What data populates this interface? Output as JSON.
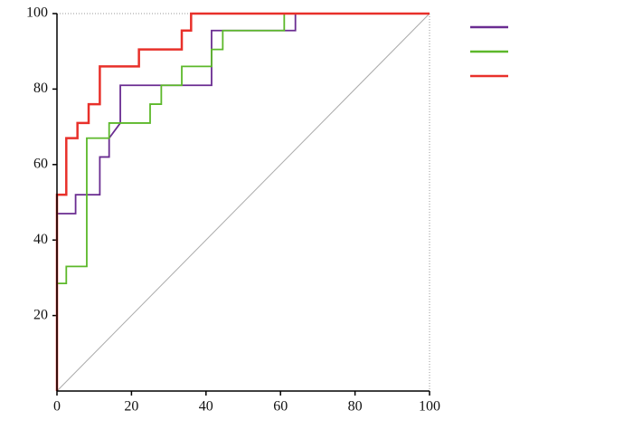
{
  "chart_data": {
    "type": "line",
    "step": true,
    "xlim": [
      0,
      100
    ],
    "ylim": [
      0,
      100
    ],
    "xticks": [
      0,
      20,
      40,
      60,
      80,
      100
    ],
    "yticks": [
      20,
      40,
      60,
      80,
      100
    ],
    "reference_line": true,
    "legend": "right",
    "series": [
      {
        "color": "#6a2c91",
        "x": [
          0,
          0,
          5,
          5,
          11.5,
          11.5,
          14,
          14,
          17,
          17,
          41.5,
          41.5,
          64,
          64,
          100
        ],
        "values": [
          0,
          47,
          47,
          52,
          52,
          62,
          62,
          67,
          71,
          81,
          81,
          95.5,
          95.5,
          100,
          100
        ]
      },
      {
        "color": "#5cb82a",
        "x": [
          0,
          0,
          2.5,
          2.5,
          8,
          8,
          14,
          14,
          25,
          25,
          28,
          28,
          33.5,
          33.5,
          41.5,
          41.5,
          44.5,
          44.5,
          61,
          61,
          100
        ],
        "values": [
          0,
          28.5,
          28.5,
          33,
          33,
          67,
          67,
          71,
          71,
          76,
          76,
          81,
          81,
          86,
          86,
          90.5,
          90.5,
          95.5,
          95.5,
          100,
          100
        ]
      },
      {
        "color": "#e8302a",
        "x": [
          0,
          0,
          2.5,
          2.5,
          5.5,
          5.5,
          8.5,
          8.5,
          11.5,
          11.5,
          22,
          22,
          33.5,
          33.5,
          36,
          36,
          100
        ],
        "values": [
          0,
          52,
          52,
          67,
          67,
          71,
          71,
          76,
          76,
          86,
          86,
          90.5,
          90.5,
          95.5,
          95.5,
          100,
          100
        ]
      }
    ]
  }
}
